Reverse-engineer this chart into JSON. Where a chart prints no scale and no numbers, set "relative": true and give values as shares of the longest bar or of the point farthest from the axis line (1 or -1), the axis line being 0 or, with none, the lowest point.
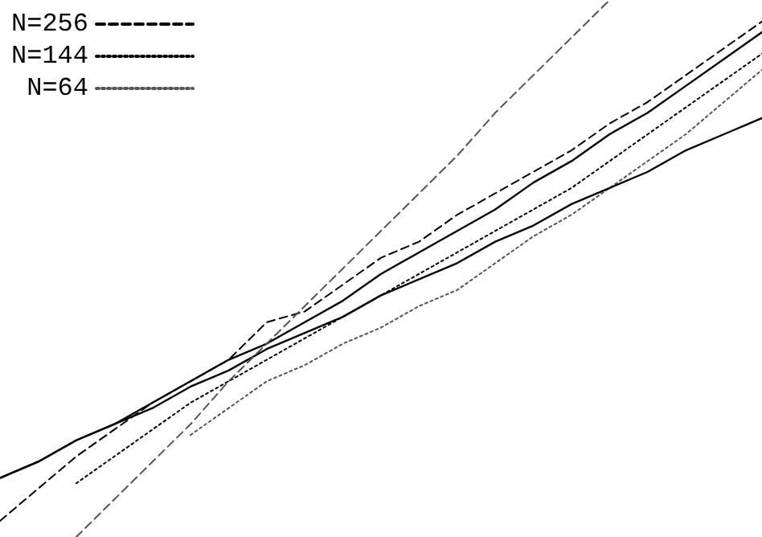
{
  "chart_data": {
    "type": "line",
    "relative": true,
    "categories": [
      null,
      null,
      null,
      null,
      null,
      null,
      null,
      null,
      null,
      null,
      null,
      null,
      null,
      null,
      null,
      null,
      null,
      null,
      null,
      null,
      null
    ],
    "legend": "top left",
    "tick_labels": false,
    "grid": false,
    "marker": "none",
    "series": [
      {
        "name": "N=256",
        "color": "#000000",
        "line_style": "dashed",
        "values": [
          0.03,
          0.09,
          0.15,
          0.2,
          0.25,
          0.29,
          0.33,
          0.4,
          0.42,
          0.47,
          0.52,
          0.55,
          0.6,
          0.64,
          0.68,
          0.72,
          0.77,
          0.81,
          0.86,
          0.91,
          0.96
        ]
      },
      {
        "name": "N=144",
        "color": "#000000",
        "line_style": "dotted",
        "values": [
          null,
          null,
          0.1,
          0.15,
          0.2,
          0.25,
          0.29,
          0.33,
          0.37,
          0.41,
          0.45,
          0.49,
          0.53,
          0.57,
          0.61,
          0.65,
          0.7,
          0.75,
          0.8,
          0.85,
          0.9
        ]
      },
      {
        "name": "N=64",
        "color": "#555555",
        "line_style": "dotted",
        "values": [
          null,
          null,
          null,
          null,
          null,
          0.19,
          0.24,
          0.29,
          0.32,
          0.36,
          0.39,
          0.43,
          0.46,
          0.51,
          0.56,
          0.6,
          0.65,
          0.7,
          0.75,
          0.81,
          0.87
        ]
      },
      {
        "color": "#000000",
        "line_style": "solid",
        "values": [
          0.11,
          0.14,
          0.18,
          0.21,
          0.25,
          0.29,
          0.33,
          0.36,
          0.4,
          0.44,
          0.49,
          0.53,
          0.57,
          0.61,
          0.66,
          0.7,
          0.75,
          0.79,
          0.84,
          0.89,
          0.94
        ]
      },
      {
        "color": "#000000",
        "line_style": "solid",
        "values": [
          0.11,
          0.14,
          0.18,
          0.21,
          0.24,
          0.28,
          0.31,
          0.35,
          0.38,
          0.41,
          0.45,
          0.48,
          0.51,
          0.55,
          0.58,
          0.62,
          0.65,
          0.68,
          0.72,
          0.75,
          0.78
        ]
      },
      {
        "color": "#555555",
        "line_style": "dashed",
        "values": [
          null,
          null,
          0,
          0.07,
          0.14,
          0.21,
          0.29,
          0.36,
          0.43,
          0.5,
          0.57,
          0.64,
          0.71,
          0.79,
          0.86,
          0.93,
          1,
          null,
          null,
          null,
          null
        ]
      }
    ]
  }
}
